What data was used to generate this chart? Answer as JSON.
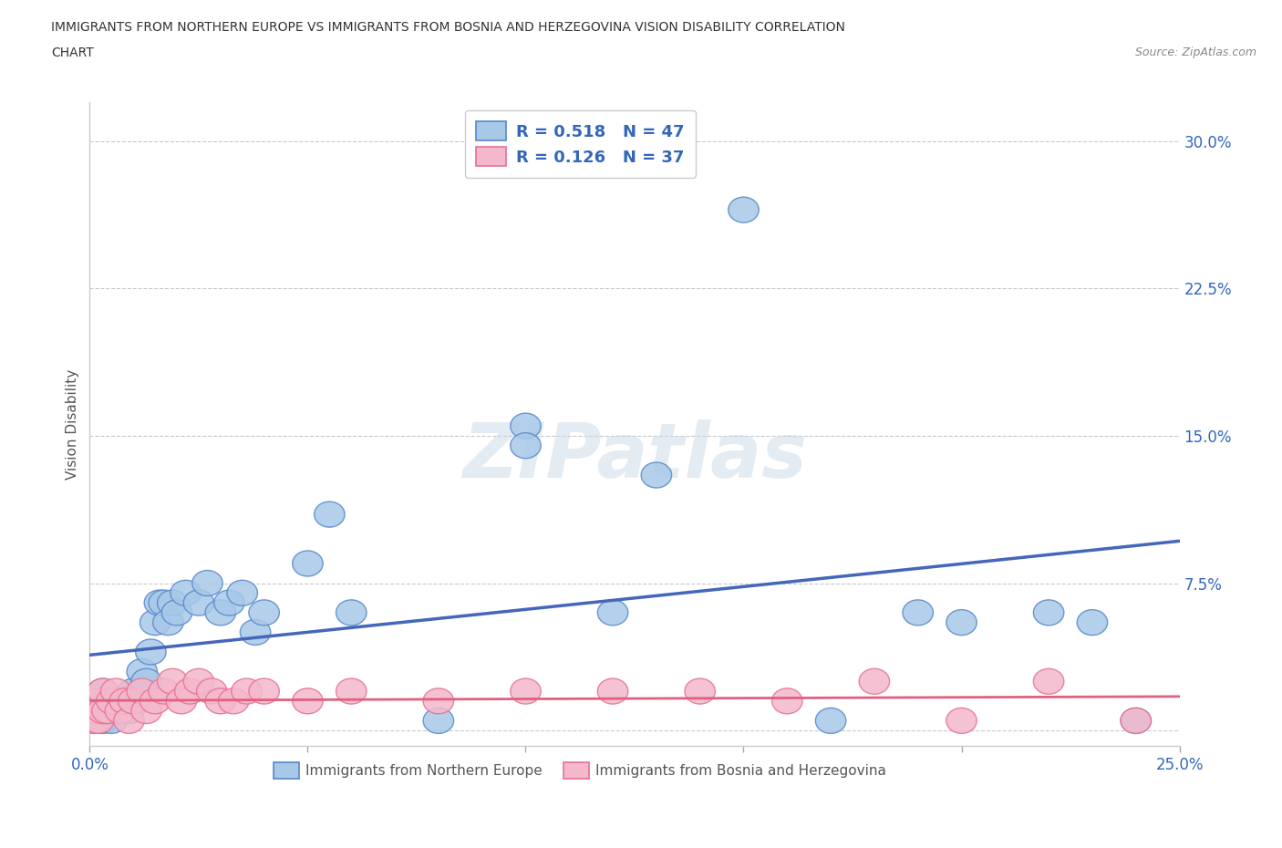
{
  "title_line1": "IMMIGRANTS FROM NORTHERN EUROPE VS IMMIGRANTS FROM BOSNIA AND HERZEGOVINA VISION DISABILITY CORRELATION",
  "title_line2": "CHART",
  "source": "Source: ZipAtlas.com",
  "ylabel": "Vision Disability",
  "xlim": [
    0.0,
    0.25
  ],
  "ylim": [
    -0.008,
    0.32
  ],
  "xticks": [
    0.0,
    0.05,
    0.1,
    0.15,
    0.2,
    0.25
  ],
  "yticks": [
    0.0,
    0.075,
    0.15,
    0.225,
    0.3
  ],
  "blue_color": "#A8C8E8",
  "pink_color": "#F4B8CC",
  "blue_edge_color": "#5588CC",
  "pink_edge_color": "#E87090",
  "blue_line_color": "#4466BB",
  "pink_line_color": "#E06080",
  "text_color": "#3366BB",
  "blue_R": 0.518,
  "blue_N": 47,
  "pink_R": 0.126,
  "pink_N": 37,
  "watermark": "ZIPatlas",
  "legend_label_blue": "Immigrants from Northern Europe",
  "legend_label_pink": "Immigrants from Bosnia and Herzegovina",
  "blue_scatter_x": [
    0.001,
    0.001,
    0.002,
    0.002,
    0.003,
    0.003,
    0.004,
    0.004,
    0.005,
    0.005,
    0.006,
    0.007,
    0.008,
    0.009,
    0.01,
    0.012,
    0.013,
    0.014,
    0.015,
    0.016,
    0.017,
    0.018,
    0.019,
    0.02,
    0.022,
    0.025,
    0.027,
    0.03,
    0.032,
    0.035,
    0.038,
    0.04,
    0.05,
    0.055,
    0.06,
    0.08,
    0.1,
    0.13,
    0.15,
    0.17,
    0.19,
    0.2,
    0.22,
    0.23,
    0.24,
    0.1,
    0.12
  ],
  "blue_scatter_y": [
    0.005,
    0.01,
    0.005,
    0.015,
    0.005,
    0.02,
    0.01,
    0.015,
    0.005,
    0.01,
    0.015,
    0.01,
    0.015,
    0.01,
    0.02,
    0.03,
    0.025,
    0.04,
    0.055,
    0.065,
    0.065,
    0.055,
    0.065,
    0.06,
    0.07,
    0.065,
    0.075,
    0.06,
    0.065,
    0.07,
    0.05,
    0.06,
    0.085,
    0.11,
    0.06,
    0.005,
    0.155,
    0.13,
    0.265,
    0.005,
    0.06,
    0.055,
    0.06,
    0.055,
    0.005,
    0.145,
    0.06
  ],
  "pink_scatter_x": [
    0.001,
    0.001,
    0.002,
    0.002,
    0.003,
    0.003,
    0.004,
    0.005,
    0.006,
    0.007,
    0.008,
    0.009,
    0.01,
    0.012,
    0.013,
    0.015,
    0.017,
    0.019,
    0.021,
    0.023,
    0.025,
    0.028,
    0.03,
    0.033,
    0.036,
    0.04,
    0.05,
    0.06,
    0.08,
    0.1,
    0.12,
    0.14,
    0.16,
    0.18,
    0.2,
    0.22,
    0.24
  ],
  "pink_scatter_y": [
    0.005,
    0.01,
    0.005,
    0.015,
    0.01,
    0.02,
    0.01,
    0.015,
    0.02,
    0.01,
    0.015,
    0.005,
    0.015,
    0.02,
    0.01,
    0.015,
    0.02,
    0.025,
    0.015,
    0.02,
    0.025,
    0.02,
    0.015,
    0.015,
    0.02,
    0.02,
    0.015,
    0.02,
    0.015,
    0.02,
    0.02,
    0.02,
    0.015,
    0.025,
    0.005,
    0.025,
    0.005
  ]
}
